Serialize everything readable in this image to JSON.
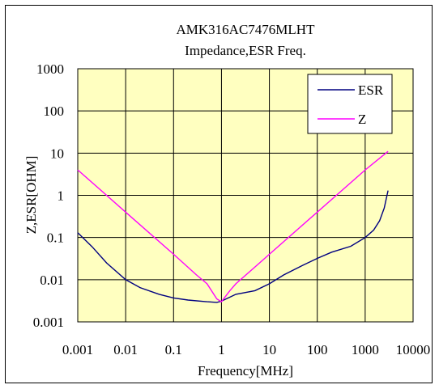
{
  "chart_data": {
    "type": "line",
    "title": "AMK316AC7476MLHT",
    "subtitle": "Impedance,ESR Freq.",
    "xlabel": "Frequency[MHz]",
    "ylabel": "Z,ESR[OHM]",
    "x_scale": "log",
    "y_scale": "log",
    "xlim": [
      0.001,
      10000
    ],
    "ylim": [
      0.001,
      1000
    ],
    "x_ticks": [
      "0.001",
      "0.01",
      "0.1",
      "1",
      "10",
      "100",
      "1000",
      "10000"
    ],
    "y_ticks": [
      "0.001",
      "0.01",
      "0.1",
      "1",
      "10",
      "100",
      "1000"
    ],
    "grid": true,
    "legend_position": "top-right",
    "plot_background": "#FFFFC0",
    "series": [
      {
        "name": "ESR",
        "color": "#000080",
        "x": [
          0.001,
          0.002,
          0.004,
          0.01,
          0.02,
          0.05,
          0.1,
          0.2,
          0.5,
          0.8,
          1.0,
          2,
          5,
          10,
          20,
          50,
          100,
          200,
          500,
          1000,
          1500,
          2000,
          2500,
          3000
        ],
        "y": [
          0.13,
          0.06,
          0.025,
          0.01,
          0.0065,
          0.0045,
          0.0037,
          0.0033,
          0.003,
          0.0029,
          0.0031,
          0.0045,
          0.0055,
          0.008,
          0.013,
          0.022,
          0.032,
          0.045,
          0.062,
          0.1,
          0.15,
          0.25,
          0.5,
          1.3
        ]
      },
      {
        "name": "Z",
        "color": "#FF00FF",
        "x": [
          0.001,
          0.01,
          0.1,
          0.3,
          0.5,
          0.8,
          1.0,
          1.5,
          2,
          5,
          10,
          100,
          1000,
          3000
        ],
        "y": [
          4.0,
          0.4,
          0.04,
          0.013,
          0.008,
          0.0035,
          0.003,
          0.0055,
          0.008,
          0.02,
          0.04,
          0.4,
          4.0,
          11
        ]
      }
    ]
  }
}
